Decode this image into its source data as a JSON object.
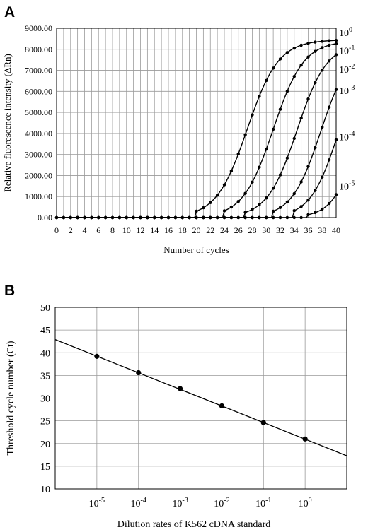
{
  "chart_data": [
    {
      "panel": "A",
      "type": "line",
      "ylabel": "Relative fluorescence intensity (ΔRn)",
      "xlabel": "Number of cycles",
      "xlim": [
        0,
        40
      ],
      "ylim": [
        0,
        9000
      ],
      "x_ticks": [
        0,
        2,
        4,
        6,
        8,
        10,
        12,
        14,
        16,
        18,
        20,
        22,
        24,
        26,
        28,
        30,
        32,
        34,
        36,
        38,
        40
      ],
      "y_ticks": [
        "0.00",
        "1000.00",
        "2000.00",
        "3000.00",
        "4000.00",
        "5000.00",
        "6000.00",
        "7000.00",
        "8000.00",
        "9000.00"
      ],
      "grid": true,
      "series": [
        {
          "label_base": "10",
          "label_exp": "0",
          "label_y": 8800,
          "plateau": 8450,
          "midpoint": 27.3,
          "slope": 0.45,
          "start": 20
        },
        {
          "label_base": "10",
          "label_exp": "-1",
          "label_y": 7950,
          "plateau": 8400,
          "midpoint": 31.0,
          "slope": 0.46,
          "start": 24
        },
        {
          "label_base": "10",
          "label_exp": "-2",
          "label_y": 7050,
          "plateau": 8300,
          "midpoint": 34.4,
          "slope": 0.47,
          "start": 27
        },
        {
          "label_base": "10",
          "label_exp": "-3",
          "label_y": 6050,
          "plateau": 8200,
          "midpoint": 37.8,
          "slope": 0.48,
          "start": 31
        },
        {
          "label_base": "10",
          "label_exp": "-4",
          "label_y": 3850,
          "plateau": 8000,
          "midpoint": 40.3,
          "slope": 0.5,
          "start": 34
        },
        {
          "label_base": "10",
          "label_exp": "-5",
          "label_y": 1500,
          "plateau": 7800,
          "midpoint": 43.3,
          "slope": 0.55,
          "start": 36
        }
      ]
    },
    {
      "panel": "B",
      "type": "scatter",
      "ylabel": "Threshold cycle number (Ct)",
      "xlabel": "Dilution rates of K562 cDNA standard",
      "x_scale": "log",
      "xlim": [
        1e-06,
        10
      ],
      "ylim": [
        10,
        50
      ],
      "y_ticks": [
        10,
        15,
        20,
        25,
        30,
        35,
        40,
        45,
        50
      ],
      "x_tick_labels": [
        {
          "value": 1e-05,
          "base": "10",
          "exp": "-5"
        },
        {
          "value": 0.0001,
          "base": "10",
          "exp": "-4"
        },
        {
          "value": 0.001,
          "base": "10",
          "exp": "-3"
        },
        {
          "value": 0.01,
          "base": "10",
          "exp": "-2"
        },
        {
          "value": 0.1,
          "base": "10",
          "exp": "-1"
        },
        {
          "value": 1,
          "base": "10",
          "exp": "0"
        }
      ],
      "grid": true,
      "points": [
        {
          "x": 1e-05,
          "y": 39.2
        },
        {
          "x": 0.0001,
          "y": 35.6
        },
        {
          "x": 0.001,
          "y": 32.1
        },
        {
          "x": 0.01,
          "y": 28.3
        },
        {
          "x": 0.1,
          "y": 24.6
        },
        {
          "x": 1,
          "y": 21.0
        }
      ],
      "fit_line": {
        "x0": 1e-06,
        "y0": 42.9,
        "x1": 10,
        "y1": 17.3
      }
    }
  ]
}
